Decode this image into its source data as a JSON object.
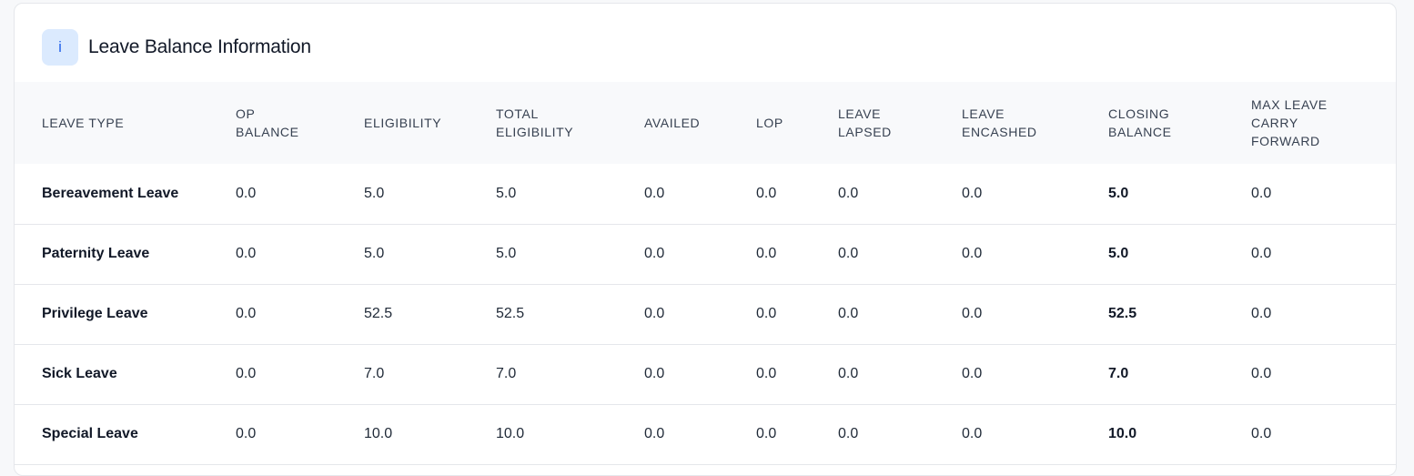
{
  "panel": {
    "icon": "info-icon",
    "icon_glyph": "i",
    "title": "Leave Balance Information"
  },
  "table": {
    "headers": [
      [
        "LEAVE TYPE"
      ],
      [
        "OP",
        "BALANCE"
      ],
      [
        "ELIGIBILITY"
      ],
      [
        "TOTAL",
        "ELIGIBILITY"
      ],
      [
        "AVAILED"
      ],
      [
        "LOP"
      ],
      [
        "LEAVE",
        "LAPSED"
      ],
      [
        "LEAVE",
        "ENCASHED"
      ],
      [
        "CLOSING",
        "BALANCE"
      ],
      [
        "MAX LEAVE",
        "CARRY",
        "FORWARD"
      ]
    ],
    "rows": [
      [
        "Bereavement Leave",
        "0.0",
        "5.0",
        "5.0",
        "0.0",
        "0.0",
        "0.0",
        "0.0",
        "5.0",
        "0.0"
      ],
      [
        "Paternity Leave",
        "0.0",
        "5.0",
        "5.0",
        "0.0",
        "0.0",
        "0.0",
        "0.0",
        "5.0",
        "0.0"
      ],
      [
        "Privilege Leave",
        "0.0",
        "52.5",
        "52.5",
        "0.0",
        "0.0",
        "0.0",
        "0.0",
        "52.5",
        "0.0"
      ],
      [
        "Sick Leave",
        "0.0",
        "7.0",
        "7.0",
        "0.0",
        "0.0",
        "0.0",
        "0.0",
        "7.0",
        "0.0"
      ],
      [
        "Special Leave",
        "0.0",
        "10.0",
        "10.0",
        "0.0",
        "0.0",
        "0.0",
        "0.0",
        "10.0",
        "0.0"
      ]
    ]
  },
  "colors": {
    "icon_bg": "#dbeafe",
    "icon_fg": "#2563eb",
    "header_bg": "#f8f9fb"
  }
}
